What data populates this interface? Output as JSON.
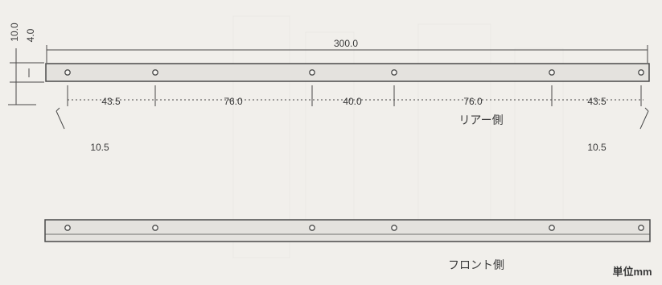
{
  "dimensions": {
    "vertical_top": "10.0",
    "vertical_second": "4.0",
    "overall_length": "300.0",
    "spacings": [
      "43.5",
      "76.0",
      "40.0",
      "76.0",
      "43.5"
    ],
    "edge_left": "10.5",
    "edge_right": "10.5"
  },
  "labels": {
    "rear": "リアー側",
    "front": "フロント側",
    "unit": "単位mm"
  },
  "holes_per_rail": 6,
  "colors": {
    "line": "#4a4a4a",
    "rail_fill": "#e4e2de",
    "background": "#f1efeb"
  }
}
